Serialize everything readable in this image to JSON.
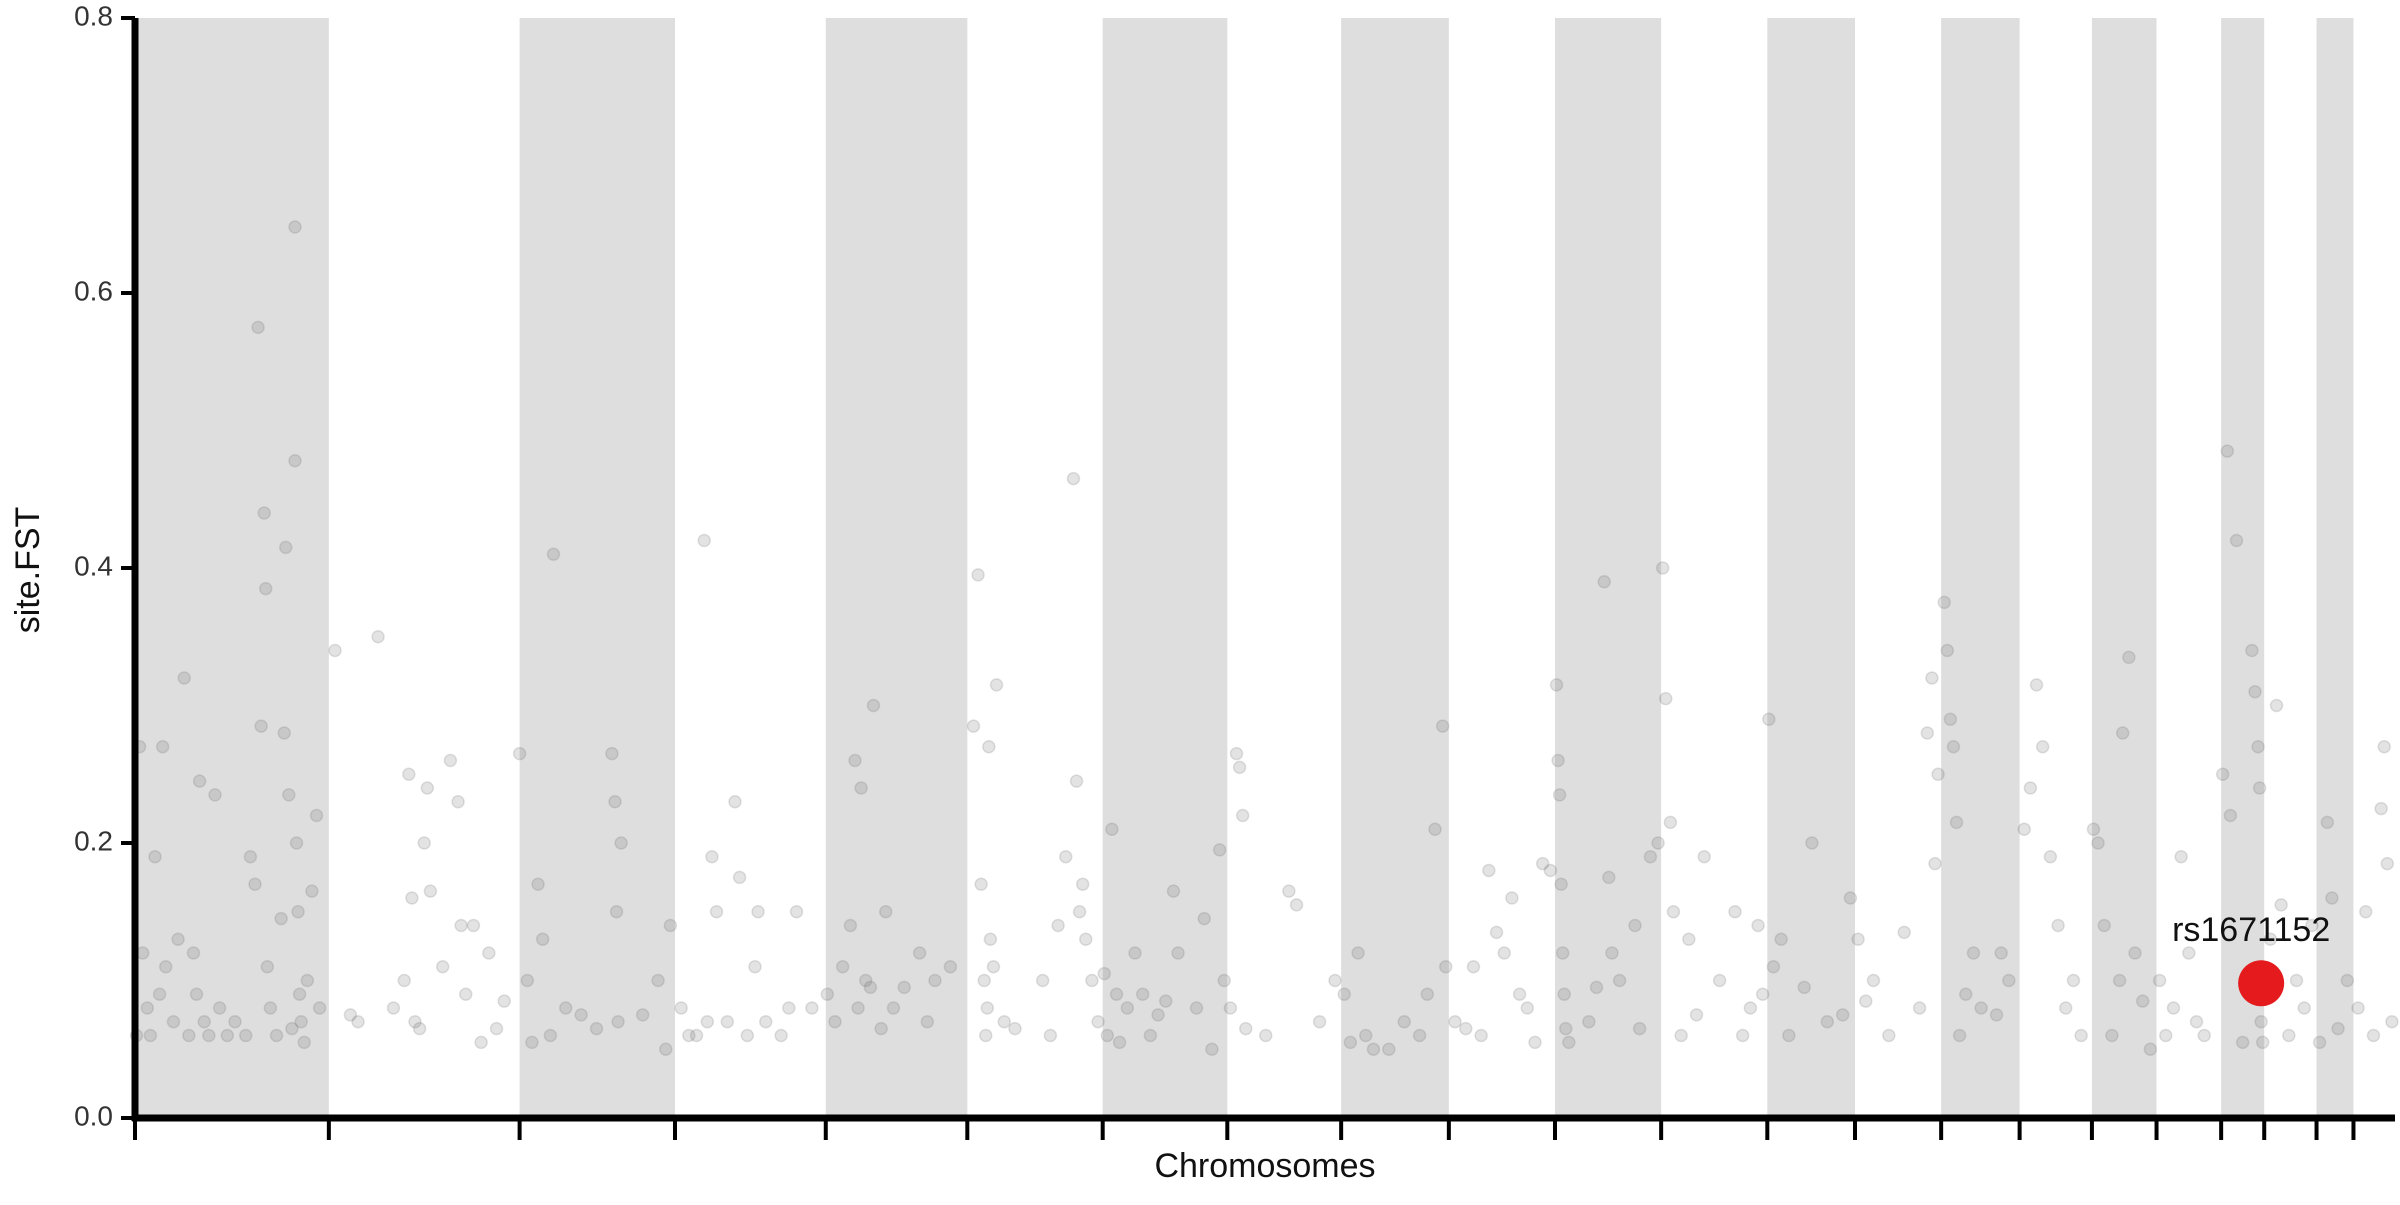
{
  "chart_data": {
    "type": "scatter",
    "x_label": "Chromosomes",
    "y_label": "site.FST",
    "xlim": [
      0,
      1469
    ],
    "ylim": [
      0,
      0.8
    ],
    "xticks": [
      0,
      126,
      250,
      351,
      449,
      541,
      629,
      710,
      784,
      854,
      923,
      992,
      1061,
      1118,
      1174,
      1225,
      1272,
      1314,
      1356,
      1384,
      1418,
      1442
    ],
    "yticks": [
      {
        "value": 0,
        "label": "0.0"
      },
      0.2,
      0.4,
      0.6,
      0.8
    ],
    "band_color": "#dedede",
    "color": "#666666",
    "opacity": 0.18,
    "x": [
      1,
      3,
      5,
      8,
      10,
      13,
      16,
      18,
      20,
      25,
      28,
      32,
      35,
      38,
      40,
      42,
      45,
      48,
      52,
      55,
      60,
      65,
      72,
      75,
      78,
      80,
      82,
      84,
      85,
      86,
      88,
      92,
      95,
      97,
      98,
      100,
      102,
      104,
      104,
      105,
      106,
      107,
      108,
      110,
      112,
      115,
      118,
      120,
      130,
      140,
      145,
      158,
      168,
      175,
      178,
      180,
      182,
      185,
      188,
      190,
      192,
      200,
      205,
      210,
      212,
      215,
      220,
      225,
      230,
      235,
      240,
      250,
      255,
      258,
      262,
      265,
      270,
      272,
      280,
      290,
      300,
      310,
      312,
      313,
      314,
      316,
      330,
      340,
      345,
      348,
      355,
      360,
      365,
      370,
      372,
      375,
      378,
      385,
      390,
      393,
      398,
      403,
      405,
      410,
      420,
      425,
      430,
      440,
      450,
      455,
      460,
      465,
      468,
      470,
      472,
      475,
      478,
      480,
      485,
      488,
      493,
      500,
      510,
      515,
      520,
      530,
      545,
      548,
      550,
      552,
      553,
      554,
      555,
      556,
      558,
      560,
      565,
      572,
      590,
      595,
      600,
      605,
      610,
      612,
      614,
      616,
      618,
      622,
      626,
      630,
      632,
      635,
      638,
      640,
      645,
      650,
      655,
      660,
      665,
      670,
      675,
      678,
      690,
      695,
      700,
      705,
      708,
      712,
      716,
      718,
      720,
      722,
      735,
      750,
      755,
      770,
      780,
      786,
      790,
      795,
      800,
      805,
      815,
      825,
      835,
      840,
      845,
      850,
      852,
      858,
      865,
      870,
      875,
      880,
      885,
      890,
      895,
      900,
      905,
      910,
      915,
      920,
      924,
      925,
      926,
      927,
      928,
      929,
      930,
      932,
      945,
      950,
      955,
      958,
      960,
      965,
      975,
      978,
      985,
      990,
      993,
      995,
      998,
      1000,
      1005,
      1010,
      1015,
      1020,
      1030,
      1040,
      1045,
      1050,
      1055,
      1058,
      1062,
      1065,
      1070,
      1075,
      1085,
      1090,
      1100,
      1110,
      1115,
      1120,
      1125,
      1130,
      1140,
      1150,
      1160,
      1165,
      1168,
      1170,
      1172,
      1176,
      1178,
      1180,
      1182,
      1184,
      1186,
      1190,
      1195,
      1200,
      1210,
      1213,
      1218,
      1228,
      1232,
      1236,
      1240,
      1245,
      1250,
      1255,
      1260,
      1265,
      1273,
      1276,
      1280,
      1285,
      1290,
      1292,
      1296,
      1300,
      1305,
      1310,
      1316,
      1320,
      1325,
      1330,
      1335,
      1340,
      1345,
      1357,
      1360,
      1362,
      1366,
      1370,
      1376,
      1378,
      1380,
      1381,
      1382,
      1383,
      1388,
      1392,
      1395,
      1400,
      1405,
      1410,
      1415,
      1420,
      1425,
      1428,
      1432,
      1438,
      1445,
      1450,
      1455,
      1460,
      1462,
      1464,
      1467
    ],
    "values": [
      0.06,
      0.27,
      0.12,
      0.08,
      0.06,
      0.19,
      0.09,
      0.27,
      0.11,
      0.07,
      0.13,
      0.32,
      0.06,
      0.12,
      0.09,
      0.245,
      0.07,
      0.06,
      0.235,
      0.08,
      0.06,
      0.07,
      0.06,
      0.19,
      0.17,
      0.575,
      0.285,
      0.44,
      0.385,
      0.11,
      0.08,
      0.06,
      0.145,
      0.28,
      0.415,
      0.235,
      0.065,
      0.648,
      0.478,
      0.2,
      0.15,
      0.09,
      0.07,
      0.055,
      0.1,
      0.165,
      0.22,
      0.08,
      0.34,
      0.075,
      0.07,
      0.35,
      0.08,
      0.1,
      0.25,
      0.16,
      0.07,
      0.065,
      0.2,
      0.24,
      0.165,
      0.11,
      0.26,
      0.23,
      0.14,
      0.09,
      0.14,
      0.055,
      0.12,
      0.065,
      0.085,
      0.265,
      0.1,
      0.055,
      0.17,
      0.13,
      0.06,
      0.41,
      0.08,
      0.075,
      0.065,
      0.265,
      0.23,
      0.15,
      0.07,
      0.2,
      0.075,
      0.1,
      0.05,
      0.14,
      0.08,
      0.06,
      0.06,
      0.42,
      0.07,
      0.19,
      0.15,
      0.07,
      0.23,
      0.175,
      0.06,
      0.11,
      0.15,
      0.07,
      0.06,
      0.08,
      0.15,
      0.08,
      0.09,
      0.07,
      0.11,
      0.14,
      0.26,
      0.08,
      0.24,
      0.1,
      0.095,
      0.3,
      0.065,
      0.15,
      0.08,
      0.095,
      0.12,
      0.07,
      0.1,
      0.11,
      0.285,
      0.395,
      0.17,
      0.1,
      0.06,
      0.08,
      0.27,
      0.13,
      0.11,
      0.315,
      0.07,
      0.065,
      0.1,
      0.06,
      0.14,
      0.19,
      0.465,
      0.245,
      0.15,
      0.17,
      0.13,
      0.1,
      0.07,
      0.105,
      0.06,
      0.21,
      0.09,
      0.055,
      0.08,
      0.12,
      0.09,
      0.06,
      0.075,
      0.085,
      0.165,
      0.12,
      0.08,
      0.145,
      0.05,
      0.195,
      0.1,
      0.08,
      0.265,
      0.255,
      0.22,
      0.065,
      0.06,
      0.165,
      0.155,
      0.07,
      0.1,
      0.09,
      0.055,
      0.12,
      0.06,
      0.05,
      0.05,
      0.07,
      0.06,
      0.09,
      0.21,
      0.285,
      0.11,
      0.07,
      0.065,
      0.11,
      0.06,
      0.18,
      0.135,
      0.12,
      0.16,
      0.09,
      0.08,
      0.055,
      0.185,
      0.18,
      0.315,
      0.26,
      0.235,
      0.17,
      0.12,
      0.09,
      0.065,
      0.055,
      0.07,
      0.095,
      0.39,
      0.175,
      0.12,
      0.1,
      0.14,
      0.065,
      0.19,
      0.2,
      0.4,
      0.305,
      0.215,
      0.15,
      0.06,
      0.13,
      0.075,
      0.19,
      0.1,
      0.15,
      0.06,
      0.08,
      0.14,
      0.09,
      0.29,
      0.11,
      0.13,
      0.06,
      0.095,
      0.2,
      0.07,
      0.075,
      0.16,
      0.13,
      0.085,
      0.1,
      0.06,
      0.135,
      0.08,
      0.28,
      0.32,
      0.185,
      0.25,
      0.375,
      0.34,
      0.29,
      0.27,
      0.215,
      0.06,
      0.09,
      0.12,
      0.08,
      0.075,
      0.12,
      0.1,
      0.21,
      0.24,
      0.315,
      0.27,
      0.19,
      0.14,
      0.08,
      0.1,
      0.06,
      0.21,
      0.2,
      0.14,
      0.06,
      0.1,
      0.28,
      0.335,
      0.12,
      0.085,
      0.05,
      0.1,
      0.06,
      0.08,
      0.19,
      0.12,
      0.07,
      0.06,
      0.25,
      0.485,
      0.22,
      0.42,
      0.055,
      0.34,
      0.31,
      0.27,
      0.24,
      0.07,
      0.055,
      0.13,
      0.3,
      0.155,
      0.06,
      0.1,
      0.08,
      0.14,
      0.055,
      0.215,
      0.16,
      0.065,
      0.1,
      0.08,
      0.15,
      0.06,
      0.225,
      0.27,
      0.185,
      0.07
    ],
    "highlight": {
      "label": "rs1671152",
      "x": 1382,
      "value": 0.098,
      "color": "#e41a1c"
    }
  }
}
